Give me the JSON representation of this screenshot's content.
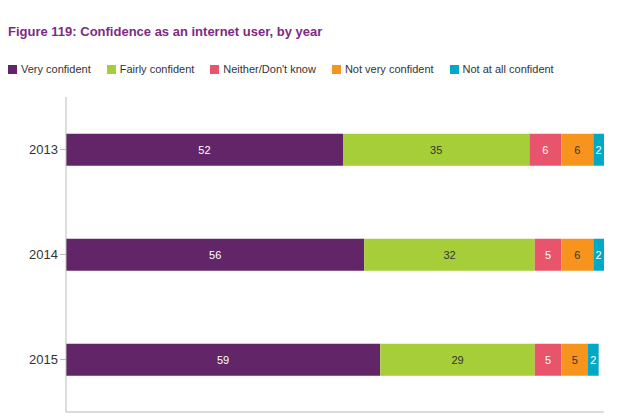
{
  "chart_data": {
    "type": "bar",
    "title": "Figure 119: Confidence as an internet user, by year",
    "categories": [
      "2013",
      "2014",
      "2015"
    ],
    "series": [
      {
        "name": "Very confident",
        "color": "#622567",
        "values": [
          52,
          56,
          59
        ]
      },
      {
        "name": "Fairly confident",
        "color": "#a6ce39",
        "values": [
          35,
          32,
          29
        ]
      },
      {
        "name": "Neither/Don't know",
        "color": "#e8546b",
        "values": [
          6,
          5,
          5
        ]
      },
      {
        "name": "Not very confident",
        "color": "#f7941d",
        "values": [
          6,
          6,
          5
        ]
      },
      {
        "name": "Not at all confident",
        "color": "#00a9c5",
        "values": [
          2,
          2,
          2
        ]
      }
    ],
    "xlim": [
      0,
      101
    ],
    "orientation": "horizontal",
    "stacked": true,
    "data_labels": true,
    "legend": "top",
    "tick_labels": "y",
    "grid": false
  }
}
